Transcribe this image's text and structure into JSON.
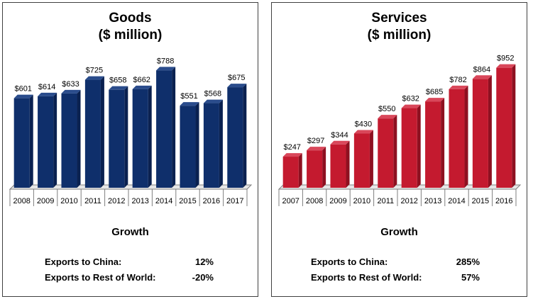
{
  "chart_data": [
    {
      "type": "bar",
      "title": "Goods",
      "subtitle": "($ million)",
      "categories": [
        "2008",
        "2009",
        "2010",
        "2011",
        "2012",
        "2013",
        "2014",
        "2015",
        "2016",
        "2017"
      ],
      "values": [
        601,
        614,
        633,
        725,
        658,
        662,
        788,
        551,
        568,
        675
      ],
      "data_labels": [
        "$601",
        "$614",
        "$633",
        "$725",
        "$658",
        "$662",
        "$788",
        "$551",
        "$568",
        "$675"
      ],
      "ylim": [
        0,
        880
      ],
      "grid": false,
      "legend": "none",
      "bar_color": "#0f2f6b",
      "bar_side_color": "#0a2150",
      "bar_top_color": "#2a4c8c"
    },
    {
      "type": "bar",
      "title": "Services",
      "subtitle": "($ million)",
      "categories": [
        "2007",
        "2008",
        "2009",
        "2010",
        "2011",
        "2012",
        "2013",
        "2014",
        "2015",
        "2016"
      ],
      "values": [
        247,
        297,
        344,
        430,
        550,
        632,
        685,
        782,
        864,
        952
      ],
      "data_labels": [
        "$247",
        "$297",
        "$344",
        "$430",
        "$550",
        "$632",
        "$685",
        "$782",
        "$864",
        "$952"
      ],
      "ylim": [
        0,
        1040
      ],
      "grid": false,
      "legend": "none",
      "bar_color": "#c41a2f",
      "bar_side_color": "#8e1020",
      "bar_top_color": "#d9475a"
    }
  ],
  "goods": {
    "growth_label": "Growth",
    "exports_china_label": "Exports to China:",
    "exports_china_value": "12%",
    "exports_row_label": "Exports to Rest of World:",
    "exports_row_value": "-20%"
  },
  "services": {
    "growth_label": "Growth",
    "exports_china_label": "Exports to China:",
    "exports_china_value": "285%",
    "exports_row_label": "Exports to Rest of World:",
    "exports_row_value": "57%"
  }
}
